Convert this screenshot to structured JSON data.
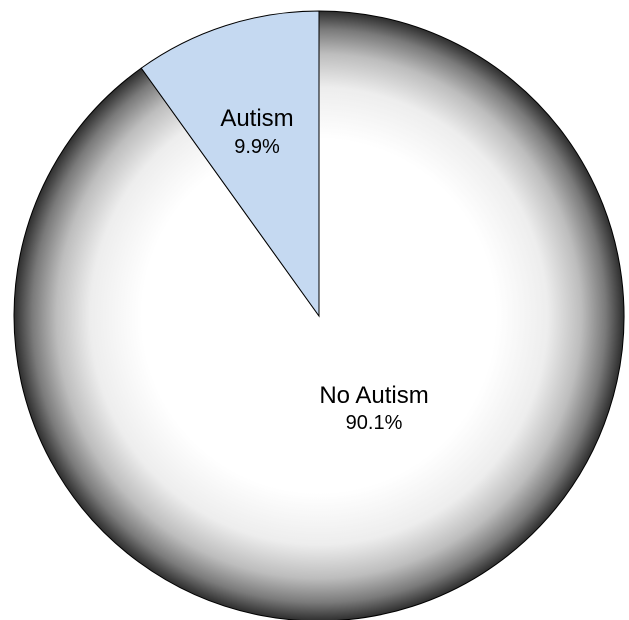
{
  "chart_data": {
    "type": "pie",
    "title": "",
    "slices": [
      {
        "label": "Autism",
        "value": 9.9,
        "value_label": "9.9%",
        "color": "#c5d9f1"
      },
      {
        "label": "No Autism",
        "value": 90.1,
        "value_label": "90.1%",
        "color": "#ffffff"
      }
    ],
    "start": "12 o'clock",
    "direction": "counter-clockwise",
    "large_slice_fill": "radial gradient, white center to dark gray edge"
  }
}
